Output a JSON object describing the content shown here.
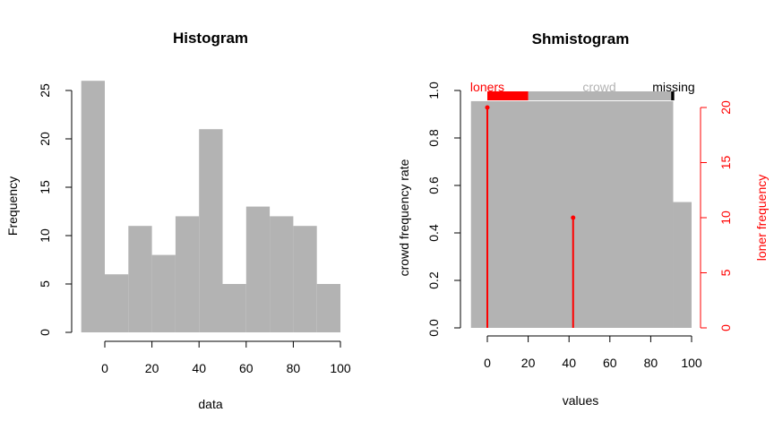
{
  "chart_data": [
    {
      "type": "bar",
      "title": "Histogram",
      "xlabel": "data",
      "ylabel": "Frequency",
      "xlim": [
        -10,
        100
      ],
      "ylim": [
        0,
        26
      ],
      "x_ticks": [
        0,
        20,
        40,
        60,
        80,
        100
      ],
      "y_ticks": [
        0,
        5,
        10,
        15,
        20,
        25
      ],
      "bins": [
        {
          "from": -10,
          "to": 0,
          "value": 26
        },
        {
          "from": 0,
          "to": 10,
          "value": 6
        },
        {
          "from": 10,
          "to": 20,
          "value": 11
        },
        {
          "from": 20,
          "to": 30,
          "value": 8
        },
        {
          "from": 30,
          "to": 40,
          "value": 12
        },
        {
          "from": 40,
          "to": 50,
          "value": 21
        },
        {
          "from": 50,
          "to": 60,
          "value": 5
        },
        {
          "from": 60,
          "to": 70,
          "value": 13
        },
        {
          "from": 70,
          "to": 80,
          "value": 12
        },
        {
          "from": 80,
          "to": 90,
          "value": 11
        },
        {
          "from": 90,
          "to": 100,
          "value": 5
        }
      ],
      "bar_color": "#b3b3b3"
    },
    {
      "type": "bar",
      "title": "Shmistogram",
      "xlabel": "values",
      "ylabel": "crowd frequency rate",
      "y2label": "loner frequency",
      "xlim": [
        -8,
        100
      ],
      "ylim": [
        0,
        1.0
      ],
      "y2lim": [
        0,
        20
      ],
      "x_ticks": [
        0,
        20,
        40,
        60,
        80,
        100
      ],
      "y_ticks": [
        "0.0",
        "0.2",
        "0.4",
        "0.6",
        "0.8",
        "1.0"
      ],
      "y2_ticks": [
        0,
        5,
        10,
        15,
        20
      ],
      "crowd_bins": [
        {
          "from": -8,
          "to": 91,
          "value": 0.955
        },
        {
          "from": 91,
          "to": 100,
          "value": 0.53
        }
      ],
      "loners": [
        {
          "x": 0,
          "count": 20
        },
        {
          "x": 42,
          "count": 10
        }
      ],
      "legend": {
        "labels": [
          "loners",
          "crowd",
          "missing"
        ],
        "loners_range": [
          0,
          20
        ],
        "crowd_range": [
          20,
          90
        ],
        "missing_range": [
          90,
          91.5
        ]
      },
      "crowd_color": "#b3b3b3",
      "loner_color": "#ff0000",
      "missing_color": "#000000"
    }
  ]
}
